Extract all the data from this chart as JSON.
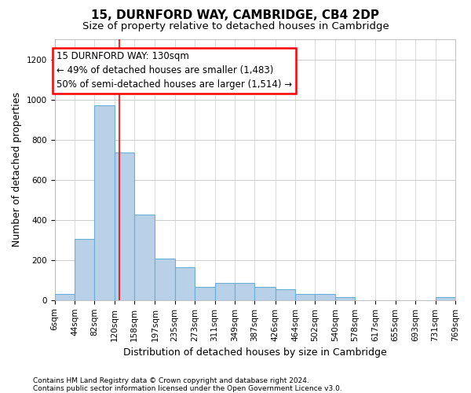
{
  "title1": "15, DURNFORD WAY, CAMBRIDGE, CB4 2DP",
  "title2": "Size of property relative to detached houses in Cambridge",
  "xlabel": "Distribution of detached houses by size in Cambridge",
  "ylabel": "Number of detached properties",
  "footnote1": "Contains HM Land Registry data © Crown copyright and database right 2024.",
  "footnote2": "Contains public sector information licensed under the Open Government Licence v3.0.",
  "bin_edges": [
    6,
    44,
    82,
    120,
    158,
    197,
    235,
    273,
    311,
    349,
    387,
    426,
    464,
    502,
    540,
    578,
    617,
    655,
    693,
    731,
    769
  ],
  "bar_heights": [
    30,
    305,
    970,
    735,
    425,
    205,
    165,
    65,
    85,
    85,
    65,
    55,
    30,
    30,
    15,
    0,
    0,
    0,
    0,
    15
  ],
  "bar_color": "#b8d0e8",
  "bar_edgecolor": "#6aaed6",
  "bar_linewidth": 0.8,
  "grid_color": "#cccccc",
  "ylim": [
    0,
    1300
  ],
  "yticks": [
    0,
    200,
    400,
    600,
    800,
    1000,
    1200
  ],
  "red_line_x": 130,
  "annotation_line1": "15 DURNFORD WAY: 130sqm",
  "annotation_line2": "← 49% of detached houses are smaller (1,483)",
  "annotation_line3": "50% of semi-detached houses are larger (1,514) →",
  "annotation_fontsize": 8.5,
  "title1_fontsize": 11,
  "title2_fontsize": 9.5,
  "xlabel_fontsize": 9,
  "ylabel_fontsize": 9,
  "background_color": "#ffffff",
  "tick_label_fontsize": 7.5,
  "footnote_fontsize": 6.5
}
